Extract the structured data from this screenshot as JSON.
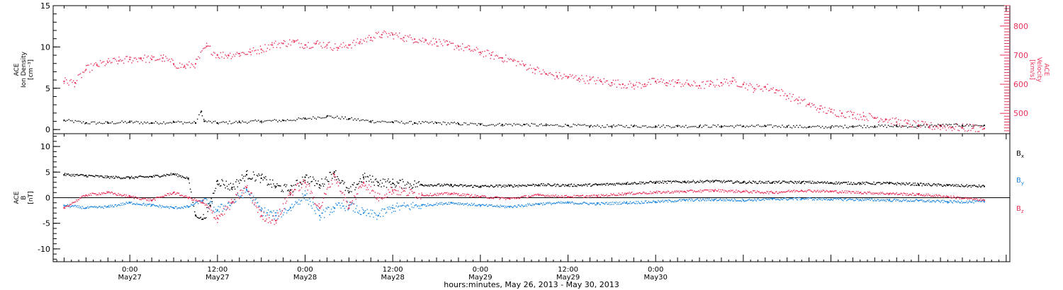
{
  "chart_data": [
    {
      "type": "scatter",
      "panel": "top",
      "left_axis": {
        "label_lines": [
          "ACE",
          "Ion Density",
          "[cm⁻³]"
        ],
        "ylim": [
          -0.5,
          15
        ],
        "ticks": [
          0,
          5,
          10,
          15
        ]
      },
      "right_axis": {
        "label_lines": [
          "ACE",
          "Velocity",
          "[km/s]"
        ],
        "ylim": [
          430,
          870
        ],
        "ticks": [
          500,
          600,
          700,
          800
        ],
        "color": "#e8325a"
      },
      "series": [
        {
          "name": "",
          "axis": "left",
          "color": "#000000",
          "x": [
            -9,
            -6,
            -3,
            0,
            3,
            6,
            9,
            9.8,
            10.2,
            12,
            15,
            18,
            21,
            24,
            27,
            30,
            33,
            36,
            39,
            42,
            45,
            48,
            51,
            54,
            57,
            60,
            63,
            66,
            69,
            72,
            75,
            78,
            81,
            84,
            87,
            90,
            93,
            96,
            99,
            102,
            105,
            108,
            111,
            114,
            117
          ],
          "y": [
            1.1,
            0.8,
            0.8,
            0.9,
            0.8,
            0.9,
            0.8,
            2.2,
            1.0,
            0.8,
            0.9,
            1.0,
            1.1,
            1.3,
            1.6,
            1.3,
            1.0,
            0.9,
            0.8,
            0.8,
            0.7,
            0.6,
            0.6,
            0.6,
            0.5,
            0.5,
            0.4,
            0.4,
            0.4,
            0.4,
            0.4,
            0.4,
            0.4,
            0.4,
            0.4,
            0.4,
            0.3,
            0.3,
            0.4,
            0.4,
            0.4,
            0.4,
            0.5,
            0.5,
            0.5
          ]
        },
        {
          "name": "",
          "axis": "right",
          "color": "#e8325a",
          "x": [
            -9,
            -7.5,
            -6,
            -4.5,
            -3,
            -1.5,
            0,
            1.5,
            3,
            4.5,
            6,
            7.5,
            9,
            10.5,
            12,
            13.5,
            15,
            16.5,
            18,
            19.5,
            21,
            22.5,
            24,
            25.5,
            27,
            28.5,
            30,
            31.5,
            33,
            34.5,
            36,
            37.5,
            39,
            40.5,
            42,
            43.5,
            45,
            46.5,
            48,
            49.5,
            51,
            52.5,
            54,
            55.5,
            57,
            58.5,
            60,
            61.5,
            63,
            64.5,
            66,
            67.5,
            69,
            70.5,
            72,
            73.5,
            75,
            76.5,
            78,
            79.5,
            81,
            82.5,
            84,
            85.5,
            87,
            88.5,
            90,
            91.5,
            93,
            94.5,
            96,
            97.5,
            99,
            100.5,
            102,
            103.5,
            105,
            106.5,
            108,
            109.5,
            111,
            112.5,
            114,
            115.5,
            117
          ],
          "y": [
            610,
            605,
            650,
            665,
            675,
            680,
            685,
            690,
            685,
            690,
            670,
            660,
            670,
            730,
            700,
            700,
            705,
            710,
            720,
            735,
            740,
            745,
            735,
            740,
            735,
            725,
            735,
            745,
            760,
            770,
            770,
            760,
            755,
            750,
            745,
            735,
            730,
            720,
            710,
            700,
            690,
            680,
            665,
            650,
            635,
            628,
            625,
            620,
            615,
            610,
            605,
            600,
            595,
            600,
            610,
            605,
            605,
            600,
            595,
            600,
            605,
            610,
            600,
            585,
            590,
            580,
            560,
            545,
            530,
            515,
            505,
            500,
            495,
            490,
            485,
            480,
            470,
            465,
            460,
            455,
            455,
            452,
            450,
            450,
            448
          ]
        }
      ]
    },
    {
      "type": "line",
      "panel": "bottom",
      "left_axis": {
        "label_lines": [
          "ACE",
          "B",
          "[nT]"
        ],
        "ylim": [
          -12.5,
          12.5
        ],
        "ticks": [
          -10,
          -5,
          0,
          5,
          10
        ]
      },
      "legend_position": "right",
      "series": [
        {
          "name": "Bₓ",
          "color": "#000000",
          "x": [
            -9,
            -6,
            -3,
            0,
            3,
            6,
            8,
            9,
            10,
            11,
            12,
            14,
            16,
            18,
            20,
            22,
            24,
            26,
            28,
            30,
            32,
            34,
            36,
            40,
            44,
            48,
            52,
            56,
            60,
            64,
            68,
            72,
            76,
            80,
            84,
            88,
            92,
            96,
            100,
            104,
            108,
            112,
            117
          ],
          "y": [
            4.5,
            4.3,
            4.0,
            3.9,
            4.1,
            4.6,
            3.8,
            -3.5,
            -4.2,
            -1.5,
            3.3,
            2.0,
            4.5,
            3.8,
            2.2,
            1.5,
            4.0,
            2.5,
            5.0,
            1.0,
            4.0,
            3.0,
            2.8,
            2.5,
            2.4,
            2.2,
            2.3,
            2.5,
            2.4,
            2.5,
            2.8,
            3.0,
            3.1,
            3.2,
            3.0,
            3.0,
            3.0,
            2.9,
            2.8,
            2.8,
            2.6,
            2.4,
            2.2
          ]
        },
        {
          "name": "B_y",
          "color": "#1f88e0",
          "x": [
            -9,
            -6,
            -3,
            0,
            3,
            6,
            8,
            10,
            12,
            14,
            16,
            18,
            20,
            22,
            24,
            26,
            28,
            30,
            32,
            34,
            36,
            40,
            44,
            48,
            52,
            56,
            60,
            64,
            68,
            72,
            76,
            80,
            84,
            88,
            92,
            96,
            100,
            104,
            108,
            112,
            117
          ],
          "y": [
            -1.5,
            -2.0,
            -1.8,
            -1.0,
            -1.5,
            -2.0,
            -1.8,
            -0.5,
            -2.5,
            -1.0,
            1.5,
            -2.5,
            -3.5,
            -2.0,
            0.5,
            -3.5,
            -2.0,
            -1.5,
            -3.0,
            -3.5,
            -2.0,
            -1.5,
            -1.0,
            -1.5,
            -1.8,
            -1.2,
            -1.0,
            -1.2,
            -1.0,
            -0.8,
            -0.5,
            -0.4,
            -0.5,
            -0.3,
            -0.2,
            -0.3,
            -0.4,
            -0.5,
            -0.6,
            -0.8,
            -0.8
          ]
        },
        {
          "name": "B_z",
          "color": "#e8325a",
          "x": [
            -9,
            -6,
            -3,
            0,
            3,
            6,
            8,
            10,
            12,
            14,
            16,
            18,
            20,
            22,
            24,
            26,
            28,
            30,
            32,
            34,
            36,
            40,
            44,
            48,
            52,
            56,
            60,
            64,
            68,
            72,
            76,
            80,
            84,
            88,
            92,
            96,
            100,
            104,
            108,
            112,
            117
          ],
          "y": [
            -2.0,
            0.5,
            1.0,
            0.2,
            -0.5,
            1.0,
            0.0,
            -1.0,
            -4.0,
            -1.0,
            2.0,
            -3.5,
            -4.5,
            1.0,
            3.0,
            -2.0,
            4.5,
            -2.0,
            3.0,
            0.0,
            1.5,
            0.5,
            0.8,
            0.2,
            -0.2,
            0.5,
            0.2,
            0.3,
            0.8,
            1.0,
            1.2,
            1.4,
            1.2,
            1.0,
            1.4,
            1.2,
            1.0,
            0.8,
            0.6,
            0.2,
            -0.5
          ]
        }
      ]
    }
  ],
  "x_axis": {
    "unit": "hours from 0:00 May 27",
    "xlim": [
      -10.5,
      120.5
    ],
    "ticks": [
      {
        "x": 0,
        "time": "0:00",
        "day": "May27"
      },
      {
        "x": 12,
        "time": "12:00",
        "day": "May27"
      },
      {
        "x": 24,
        "time": "0:00",
        "day": "May28"
      },
      {
        "x": 36,
        "time": "12:00",
        "day": "May28"
      },
      {
        "x": 48,
        "time": "0:00",
        "day": "May29"
      },
      {
        "x": 60,
        "time": "12:00",
        "day": "May29"
      },
      {
        "x": 72,
        "time": "0:00",
        "day": "May30"
      }
    ],
    "label": "hours:minutes, May 26, 2013 - May 30, 2013"
  }
}
